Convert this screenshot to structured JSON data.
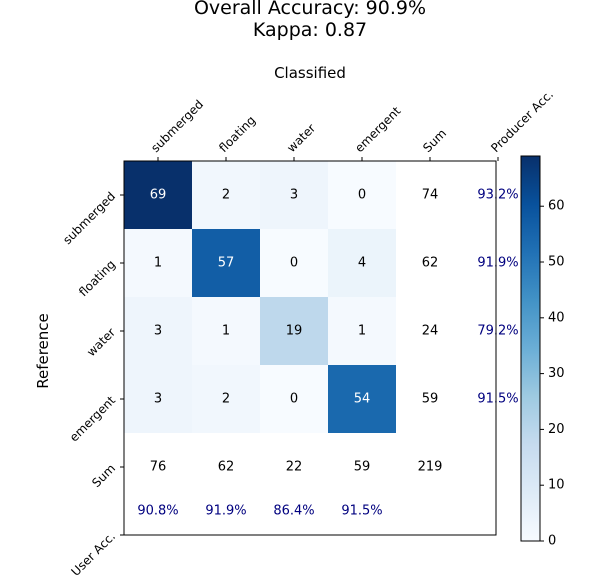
{
  "chart_data": {
    "type": "heatmap",
    "title": "Overall Accuracy: 90.9%",
    "subtitle": "Kappa: 0.87",
    "xlabel": "Classified",
    "ylabel": "Reference",
    "classes": [
      "submerged",
      "floating",
      "water",
      "emergent"
    ],
    "extra_col_labels": [
      "Sum",
      "Producer Acc."
    ],
    "extra_row_labels": [
      "Sum",
      "User Acc."
    ],
    "matrix": [
      [
        69,
        2,
        3,
        0
      ],
      [
        1,
        57,
        0,
        4
      ],
      [
        3,
        1,
        19,
        1
      ],
      [
        3,
        2,
        0,
        54
      ]
    ],
    "row_sums": [
      74,
      62,
      24,
      59
    ],
    "col_sums": [
      76,
      62,
      22,
      59
    ],
    "total": 219,
    "producer_accuracy": [
      "93.2%",
      "91.9%",
      "79.2%",
      "91.5%"
    ],
    "user_accuracy": [
      "90.8%",
      "91.9%",
      "86.4%",
      "91.5%"
    ],
    "colormap": "Blues",
    "vmin": 0,
    "vmax": 69,
    "colorbar_ticks": [
      0,
      10,
      20,
      30,
      40,
      50,
      60
    ],
    "accuracy_text_color": "#00007f"
  }
}
